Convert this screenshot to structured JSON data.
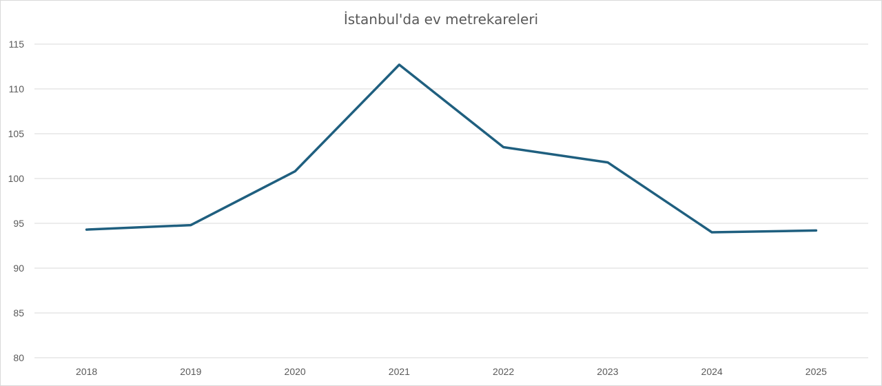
{
  "chart_data": {
    "type": "line",
    "title": "İstanbul'da ev metrekareleri",
    "xlabel": "",
    "ylabel": "",
    "categories": [
      "2018",
      "2019",
      "2020",
      "2021",
      "2022",
      "2023",
      "2024",
      "2025"
    ],
    "series": [
      {
        "values": [
          94.3,
          94.8,
          100.8,
          112.7,
          103.5,
          101.8,
          94.0,
          94.2
        ],
        "color": "#1f5f7f"
      }
    ],
    "ylim": [
      80,
      115
    ],
    "yticks": [
      "115",
      "110",
      "105",
      "100",
      "95",
      "90",
      "85",
      "80"
    ],
    "grid": true,
    "legend": "none"
  }
}
